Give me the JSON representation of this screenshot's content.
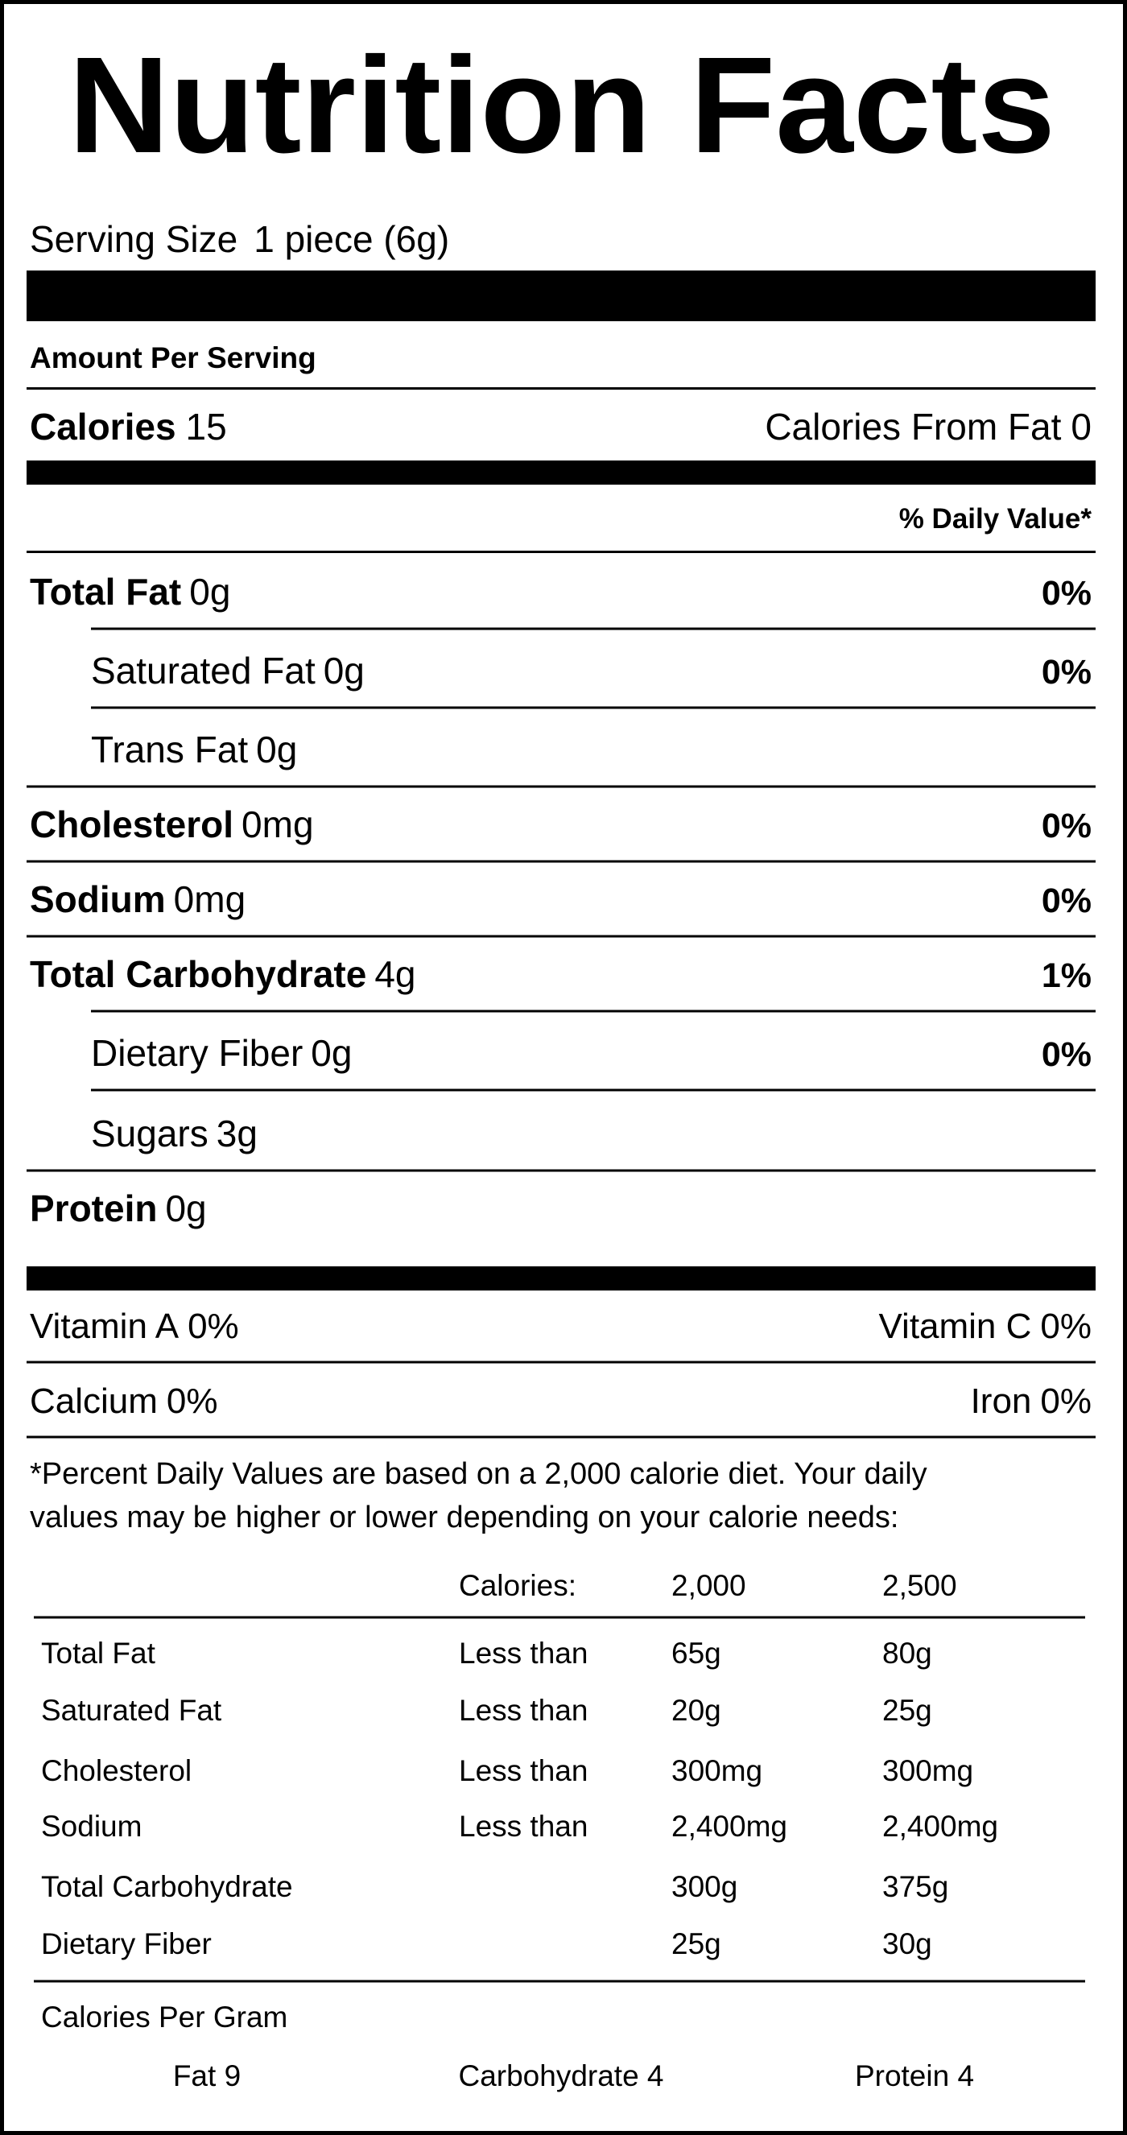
{
  "title": "Nutrition Facts",
  "serving": {
    "label": "Serving Size",
    "value": "1 piece (6g)"
  },
  "amount_per_serving": "Amount Per Serving",
  "calories": {
    "label": "Calories",
    "value": "15",
    "fat_label": "Calories From Fat",
    "fat_value": "0"
  },
  "daily_value_header": "% Daily Value*",
  "nutrients": [
    {
      "name": "Total Fat",
      "amount": "0g",
      "dv": "0%",
      "level": 0
    },
    {
      "name": "Saturated Fat",
      "amount": "0g",
      "dv": "0%",
      "level": 1
    },
    {
      "name": "Trans Fat",
      "amount": "0g",
      "level": 1
    },
    {
      "name": "Cholesterol",
      "amount": "0mg",
      "dv": "0%",
      "level": 0
    },
    {
      "name": "Sodium",
      "amount": "0mg",
      "dv": "0%",
      "level": 0
    },
    {
      "name": "Total Carbohydrate",
      "amount": "4g",
      "dv": "1%",
      "level": 0
    },
    {
      "name": "Dietary Fiber",
      "amount": "0g",
      "dv": "0%",
      "level": 1
    },
    {
      "name": "Sugars",
      "amount": "3g",
      "level": 1
    },
    {
      "name": "Protein",
      "amount": "0g",
      "level": 0
    }
  ],
  "vitamins": [
    [
      {
        "name": "Vitamin A",
        "value": "0%"
      },
      {
        "name": "Vitamin C",
        "value": "0%"
      }
    ],
    [
      {
        "name": "Calcium",
        "value": "0%"
      },
      {
        "name": "Iron",
        "value": "0%"
      }
    ]
  ],
  "footnote": [
    "*Percent Daily Values are based on a 2,000 calorie diet. Your daily",
    "values may be higher or lower depending on your calorie needs:"
  ],
  "dv_table": {
    "header": [
      null,
      "Calories:",
      "2,000",
      "2,500"
    ],
    "rows": [
      [
        "Total Fat",
        "Less than",
        "65g",
        "80g"
      ],
      [
        "Saturated Fat",
        "Less than",
        "20g",
        "25g"
      ],
      [
        "Cholesterol",
        "Less than",
        "300mg",
        "300mg"
      ],
      [
        "Sodium",
        "Less than",
        "2,400mg",
        "2,400mg"
      ],
      [
        "Total Carbohydrate",
        null,
        "300g",
        "375g"
      ],
      [
        "Dietary Fiber",
        null,
        "25g",
        "30g"
      ]
    ]
  },
  "calories_per_gram": {
    "title": "Calories Per Gram",
    "items": [
      "Fat 9",
      "Carbohydrate 4",
      "Protein 4"
    ]
  }
}
